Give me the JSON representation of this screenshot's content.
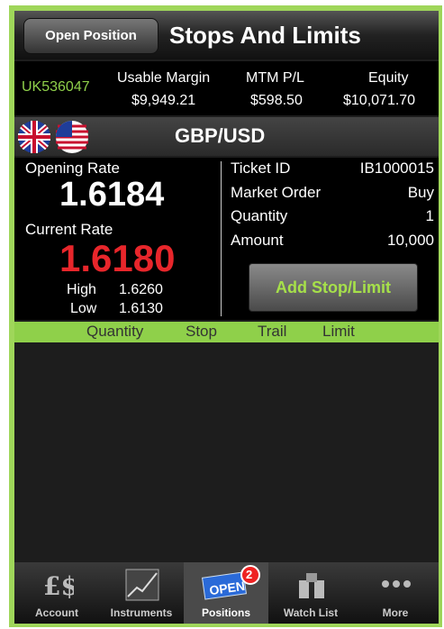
{
  "nav": {
    "back": "Open Position",
    "title": "Stops And Limits"
  },
  "account": {
    "id": "UK536047",
    "metrics": [
      {
        "label": "Usable Margin",
        "value": "$9,949.21"
      },
      {
        "label": "MTM P/L",
        "value": "$598.50"
      },
      {
        "label": "Equity",
        "value": "$10,071.70"
      }
    ]
  },
  "pair": {
    "symbol": "GBP/USD"
  },
  "details": {
    "opening_label": "Opening Rate",
    "opening_rate": "1.6184",
    "current_label": "Current Rate",
    "current_rate": "1.6180",
    "high_label": "High",
    "high": "1.6260",
    "low_label": "Low",
    "low": "1.6130",
    "rows": [
      {
        "label": "Ticket ID",
        "value": "IB1000015"
      },
      {
        "label": "Market Order",
        "value": "Buy"
      },
      {
        "label": "Quantity",
        "value": "1"
      },
      {
        "label": "Amount",
        "value": "10,000"
      }
    ],
    "button": "Add Stop/Limit"
  },
  "columns": [
    "Quantity",
    "Stop",
    "Trail",
    "Limit"
  ],
  "tabs": [
    "Account",
    "Instruments",
    "Positions",
    "Watch List",
    "More"
  ],
  "badge": "2"
}
